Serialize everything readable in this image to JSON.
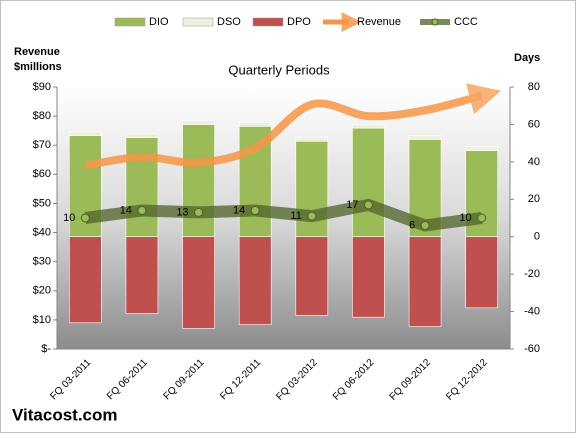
{
  "chart_data": {
    "type": "bar",
    "stacked": true,
    "title": "Quarterly Periods",
    "ylabel": [
      "Revenue",
      "$millions"
    ],
    "y2label": "Days",
    "footer": "Vitacost.com",
    "categories": [
      "FQ 03-2011",
      "FQ 06-2011",
      "FQ 09-2011",
      "FQ 12-2011",
      "FQ 03-2012",
      "FQ 06-2012",
      "FQ 09-2012",
      "FQ 12-2012"
    ],
    "ylim": [
      0,
      90
    ],
    "yticks": [
      {
        "value": 0,
        "label": "$-"
      },
      {
        "value": 10,
        "label": "$10"
      },
      {
        "value": 20,
        "label": "$20"
      },
      {
        "value": 30,
        "label": "$30"
      },
      {
        "value": 40,
        "label": "$40"
      },
      {
        "value": 50,
        "label": "$50"
      },
      {
        "value": 60,
        "label": "$60"
      },
      {
        "value": 70,
        "label": "$70"
      },
      {
        "value": 80,
        "label": "$80"
      },
      {
        "value": 90,
        "label": "$90"
      }
    ],
    "y2lim": [
      -60,
      80
    ],
    "y2ticks": [
      -60,
      -40,
      -20,
      0,
      20,
      40,
      60,
      80
    ],
    "series": [
      {
        "name": "DIO",
        "type": "bar",
        "axis": "y2",
        "color": "#9bbb59",
        "values": [
          54,
          53,
          60,
          59,
          51,
          58,
          52,
          46
        ]
      },
      {
        "name": "DSO",
        "type": "bar",
        "axis": "y2",
        "color": "#ebf1de",
        "values": [
          2,
          2,
          2,
          2,
          2,
          2,
          2,
          2
        ]
      },
      {
        "name": "DPO",
        "type": "bar",
        "axis": "y2",
        "color": "#c0504d",
        "values": [
          -46,
          -41,
          -49,
          -47,
          -42,
          -43,
          -48,
          -38
        ]
      },
      {
        "name": "Revenue",
        "type": "arrow",
        "axis": "y",
        "color": "#f79646",
        "values": [
          63,
          66,
          64,
          69,
          84,
          80,
          82,
          87
        ]
      },
      {
        "name": "CCC",
        "type": "line",
        "axis": "y2",
        "color": "#4f6228",
        "values": [
          10,
          14,
          13,
          14,
          11,
          17,
          6,
          10
        ]
      }
    ]
  }
}
